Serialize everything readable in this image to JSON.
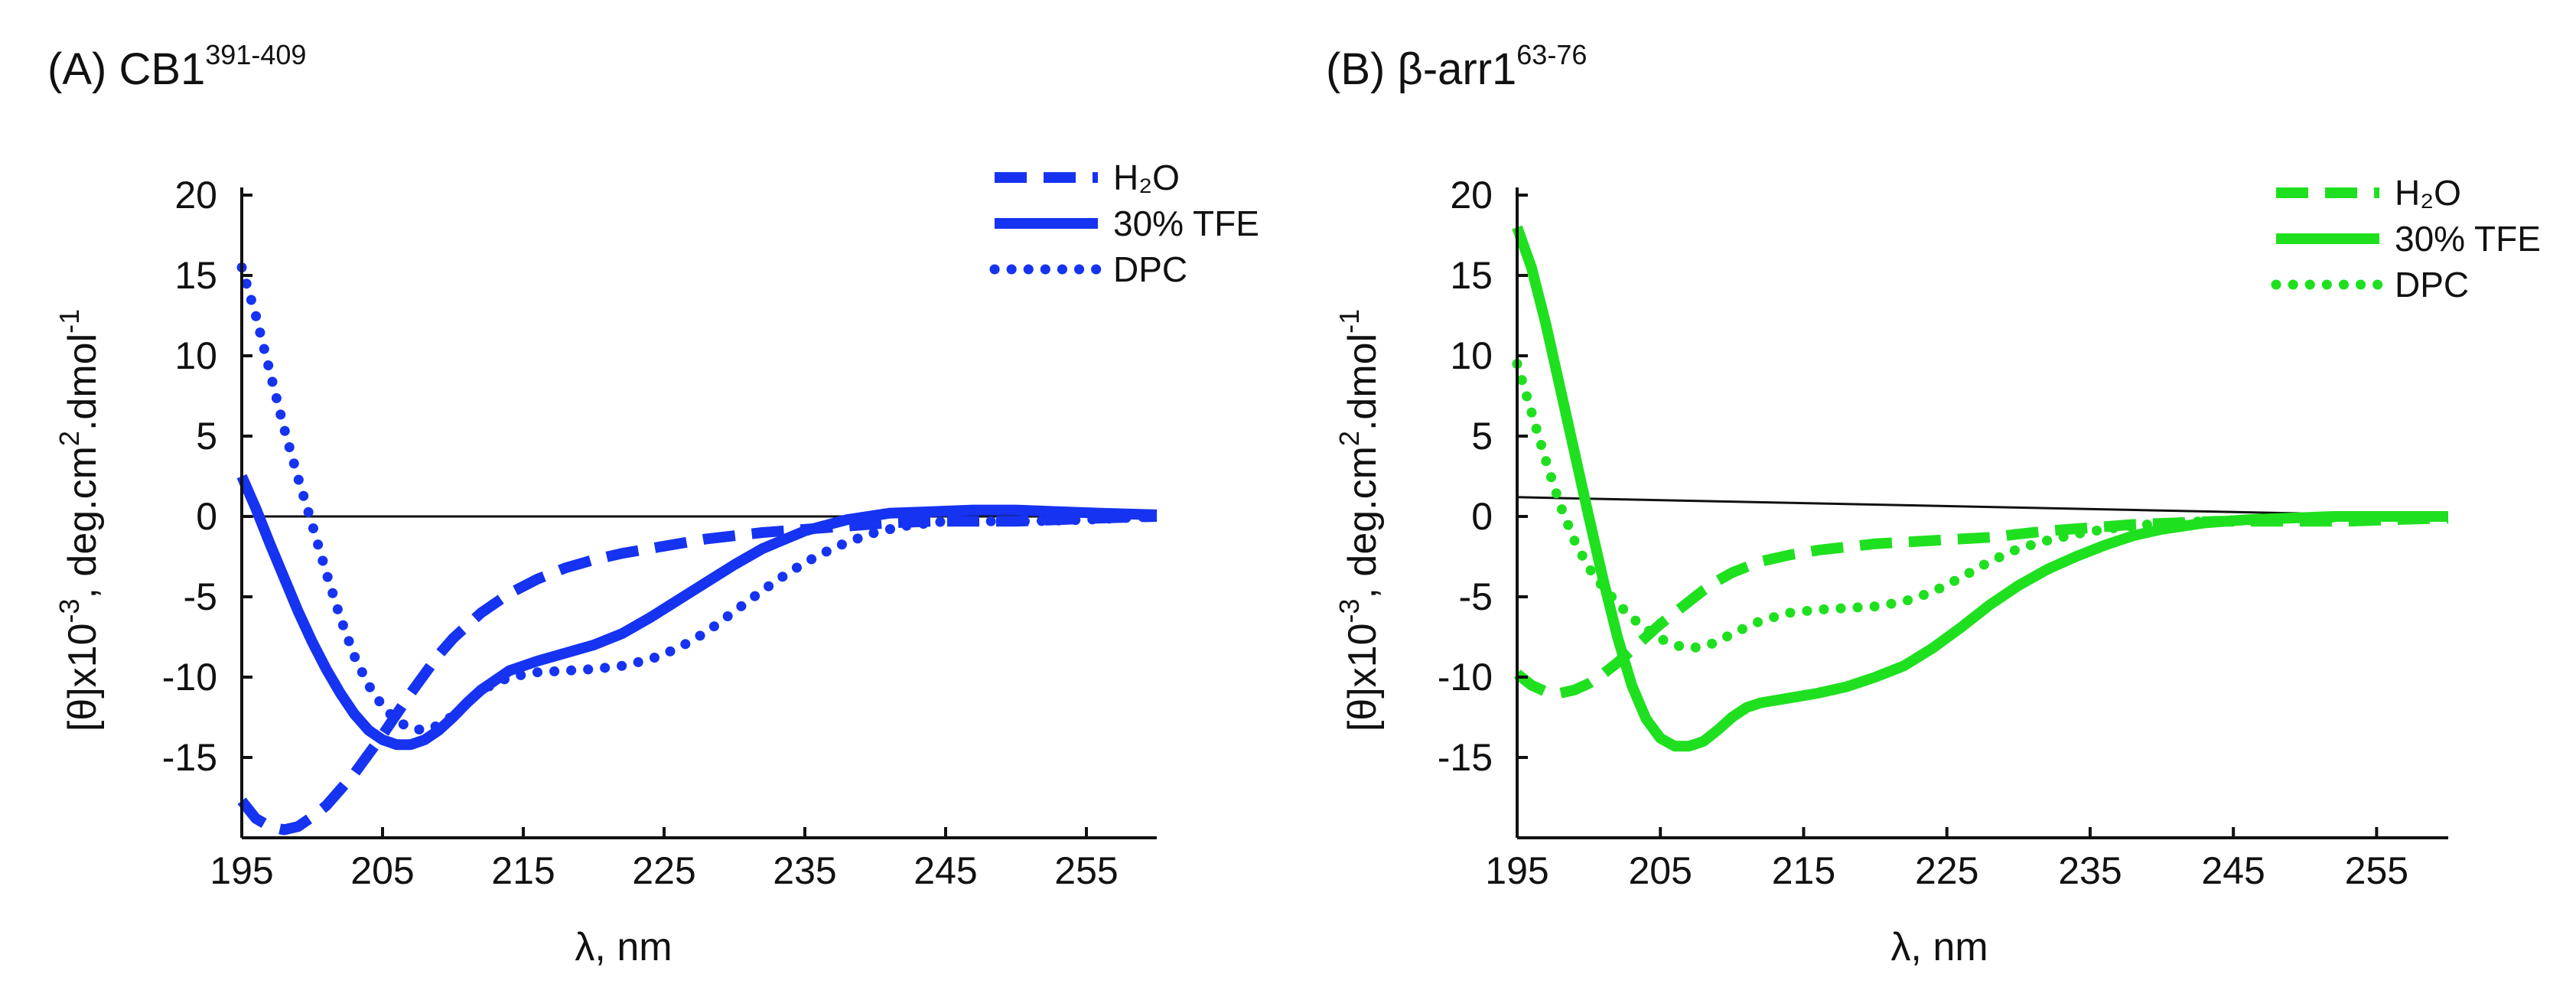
{
  "chart_data": [
    {
      "type": "line",
      "panel_label": "(A)",
      "title": "CB1",
      "title_superscript": "391-409",
      "xlabel": "λ, nm",
      "ylabel_main": "[θ]x10",
      "ylabel_exp": "-3",
      "ylabel_units": ", deg.cm",
      "ylabel_units_exp": "2",
      "ylabel_units2": ".dmol",
      "ylabel_units2_exp": "-1",
      "xlim": [
        195,
        260
      ],
      "ylim": [
        -20,
        20
      ],
      "xticks": [
        195,
        205,
        215,
        225,
        235,
        245,
        255
      ],
      "yticks": [
        -15,
        -10,
        -5,
        0,
        5,
        10,
        15,
        20
      ],
      "zero_line": 0,
      "color": "#1533f0",
      "series": [
        {
          "name": "H2O",
          "legend": "H₂O",
          "style": "dashed",
          "x": [
            195,
            196,
            197,
            198,
            199,
            200,
            201,
            202,
            203,
            204,
            205,
            206,
            207,
            208,
            209,
            210,
            212,
            214,
            216,
            218,
            220,
            222,
            224,
            226,
            228,
            230,
            232,
            235,
            238,
            241,
            244,
            247,
            250,
            253,
            256,
            260
          ],
          "y": [
            -17.7,
            -18.8,
            -19.3,
            -19.5,
            -19.3,
            -18.7,
            -18,
            -17,
            -16,
            -14.8,
            -13.6,
            -12.3,
            -11,
            -9.8,
            -8.6,
            -7.6,
            -6,
            -4.8,
            -3.9,
            -3.2,
            -2.7,
            -2.3,
            -2,
            -1.7,
            -1.4,
            -1.2,
            -1,
            -0.8,
            -0.6,
            -0.4,
            -0.3,
            -0.3,
            -0.3,
            -0.2,
            -0.1,
            0
          ]
        },
        {
          "name": "30% TFE",
          "legend": "30% TFE",
          "style": "solid",
          "x": [
            195,
            196,
            197,
            198,
            199,
            200,
            201,
            202,
            203,
            204,
            205,
            206,
            207,
            208,
            209,
            210,
            211,
            212,
            214,
            216,
            218,
            220,
            222,
            224,
            226,
            228,
            230,
            232,
            235,
            238,
            241,
            244,
            247,
            250,
            253,
            256,
            260
          ],
          "y": [
            2.5,
            0.5,
            -1.7,
            -3.8,
            -5.9,
            -7.8,
            -9.5,
            -11,
            -12.3,
            -13.3,
            -13.9,
            -14.2,
            -14.2,
            -13.9,
            -13.3,
            -12.5,
            -11.6,
            -10.8,
            -9.6,
            -9,
            -8.5,
            -8,
            -7.3,
            -6.3,
            -5.2,
            -4.1,
            -3,
            -2,
            -0.9,
            -0.2,
            0.2,
            0.3,
            0.4,
            0.4,
            0.3,
            0.2,
            0.1
          ]
        },
        {
          "name": "DPC",
          "legend": "DPC",
          "style": "dotted",
          "x": [
            195,
            196,
            197,
            198,
            199,
            200,
            201,
            202,
            203,
            204,
            205,
            206,
            207,
            208,
            209,
            210,
            211,
            212,
            214,
            216,
            218,
            220,
            222,
            224,
            226,
            228,
            230,
            232,
            234,
            236,
            238,
            240,
            242,
            245,
            248,
            251,
            255,
            260
          ],
          "y": [
            15.5,
            12.5,
            9,
            5.5,
            2.4,
            -0.5,
            -3.5,
            -6.3,
            -8.7,
            -10.5,
            -11.8,
            -12.7,
            -13.2,
            -13.3,
            -13,
            -12.4,
            -11.6,
            -10.8,
            -10,
            -9.7,
            -9.6,
            -9.5,
            -9.3,
            -8.9,
            -8.2,
            -7.2,
            -5.9,
            -4.6,
            -3.4,
            -2.4,
            -1.6,
            -1,
            -0.6,
            -0.3,
            -0.3,
            -0.3,
            -0.2,
            0
          ]
        }
      ]
    },
    {
      "type": "line",
      "panel_label": "(B)",
      "title": "β-arr1",
      "title_superscript": "63-76",
      "xlabel": "λ, nm",
      "ylabel_main": "[θ]x10",
      "ylabel_exp": "-3",
      "ylabel_units": ", deg.cm",
      "ylabel_units_exp": "2",
      "ylabel_units2": ".dmol",
      "ylabel_units2_exp": "-1",
      "xlim": [
        195,
        260
      ],
      "ylim": [
        -20,
        20
      ],
      "xticks": [
        195,
        205,
        215,
        225,
        235,
        245,
        255
      ],
      "yticks": [
        -15,
        -10,
        -5,
        0,
        5,
        10,
        15,
        20
      ],
      "zero_line": 1.2,
      "color": "#1fe01f",
      "series": [
        {
          "name": "H2O",
          "legend": "H₂O",
          "style": "dashed",
          "x": [
            195,
            196,
            197,
            198,
            199,
            200,
            201,
            202,
            203,
            204,
            205,
            206,
            207,
            208,
            209,
            210,
            212,
            214,
            216,
            218,
            220,
            222,
            224,
            226,
            228,
            230,
            232,
            235,
            238,
            241,
            244,
            247,
            250,
            253,
            256,
            260
          ],
          "y": [
            -9.8,
            -10.5,
            -10.9,
            -11,
            -10.8,
            -10.4,
            -9.8,
            -9.1,
            -8.3,
            -7.5,
            -6.7,
            -6,
            -5.3,
            -4.6,
            -4,
            -3.5,
            -2.8,
            -2.4,
            -2.1,
            -1.9,
            -1.7,
            -1.6,
            -1.5,
            -1.4,
            -1.3,
            -1.1,
            -0.9,
            -0.7,
            -0.5,
            -0.4,
            -0.3,
            -0.3,
            -0.3,
            -0.3,
            -0.2,
            -0.1
          ]
        },
        {
          "name": "30% TFE",
          "legend": "30% TFE",
          "style": "solid",
          "x": [
            195,
            196,
            197,
            198,
            199,
            200,
            201,
            202,
            203,
            204,
            205,
            206,
            207,
            208,
            209,
            210,
            211,
            212,
            214,
            216,
            218,
            220,
            222,
            224,
            226,
            228,
            230,
            232,
            234,
            236,
            238,
            240,
            243,
            246,
            249,
            252,
            256,
            260
          ],
          "y": [
            18,
            15.5,
            12,
            8,
            4,
            0,
            -3.9,
            -7.5,
            -10.5,
            -12.6,
            -13.8,
            -14.3,
            -14.3,
            -14,
            -13.3,
            -12.5,
            -11.9,
            -11.6,
            -11.3,
            -11,
            -10.6,
            -10,
            -9.3,
            -8.2,
            -6.9,
            -5.5,
            -4.3,
            -3.3,
            -2.5,
            -1.8,
            -1.2,
            -0.8,
            -0.4,
            -0.2,
            -0.1,
            0,
            0,
            0
          ]
        },
        {
          "name": "DPC",
          "legend": "DPC",
          "style": "dotted",
          "x": [
            195,
            196,
            197,
            198,
            199,
            200,
            201,
            202,
            203,
            204,
            205,
            206,
            207,
            208,
            209,
            210,
            212,
            214,
            216,
            218,
            220,
            222,
            224,
            226,
            228,
            230,
            232,
            234,
            236,
            238,
            240,
            243,
            246,
            250,
            255,
            260
          ],
          "y": [
            9.5,
            6.5,
            3.5,
            0.7,
            -1.5,
            -3.2,
            -4.4,
            -5.4,
            -6.3,
            -7,
            -7.6,
            -8,
            -8.2,
            -8.1,
            -7.8,
            -7.3,
            -6.5,
            -6,
            -5.8,
            -5.7,
            -5.6,
            -5.3,
            -4.7,
            -3.8,
            -2.8,
            -2,
            -1.5,
            -1.1,
            -0.8,
            -0.6,
            -0.4,
            -0.3,
            -0.2,
            -0.1,
            0,
            0
          ]
        }
      ]
    }
  ]
}
